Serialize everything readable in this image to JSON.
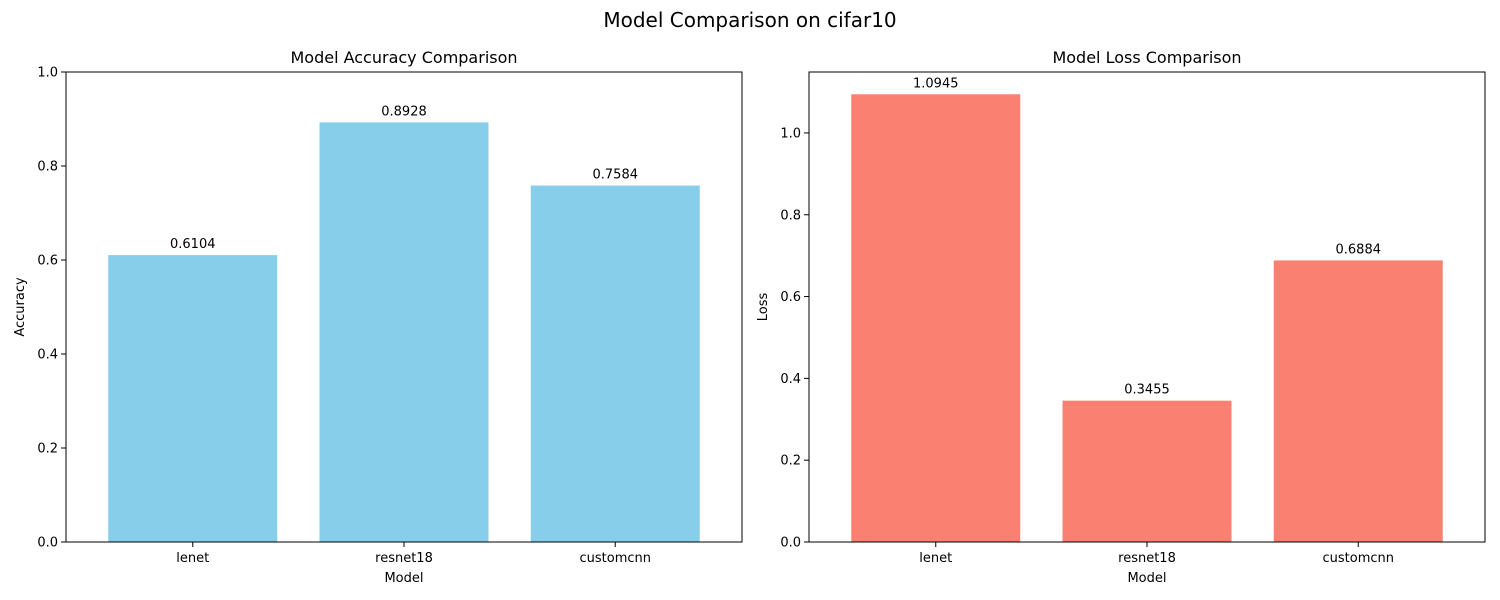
{
  "figure": {
    "title": "Model Comparison on cifar10"
  },
  "chart_data": [
    {
      "type": "bar",
      "title": "Model Accuracy Comparison",
      "xlabel": "Model",
      "ylabel": "Accuracy",
      "categories": [
        "lenet",
        "resnet18",
        "customcnn"
      ],
      "values": [
        0.6104,
        0.8928,
        0.7584
      ],
      "value_labels": [
        "0.6104",
        "0.8928",
        "0.7584"
      ],
      "ylim": [
        0,
        1.0
      ],
      "yticks": [
        0.0,
        0.2,
        0.4,
        0.6,
        0.8,
        1.0
      ],
      "ytick_labels": [
        "0.0",
        "0.2",
        "0.4",
        "0.6",
        "0.8",
        "1.0"
      ],
      "color": "#87CEEB",
      "grid": false,
      "legend": "none"
    },
    {
      "type": "bar",
      "title": "Model Loss Comparison",
      "xlabel": "Model",
      "ylabel": "Loss",
      "categories": [
        "lenet",
        "resnet18",
        "customcnn"
      ],
      "values": [
        1.0945,
        0.3455,
        0.6884
      ],
      "value_labels": [
        "1.0945",
        "0.3455",
        "0.6884"
      ],
      "ylim": [
        0,
        1.149
      ],
      "yticks": [
        0.0,
        0.2,
        0.4,
        0.6,
        0.8,
        1.0
      ],
      "ytick_labels": [
        "0.0",
        "0.2",
        "0.4",
        "0.6",
        "0.8",
        "1.0"
      ],
      "color": "#FA8072",
      "grid": false,
      "legend": "none"
    }
  ]
}
